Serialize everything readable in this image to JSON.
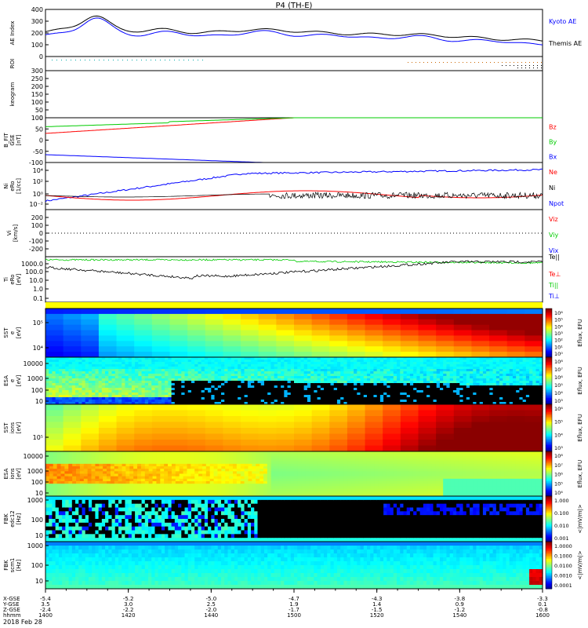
{
  "title": "P4 (TH-E)",
  "date_label": "2018 Feb 28",
  "chart_data": [
    {
      "panel": "ae",
      "type": "line",
      "ylabel": "AE Index",
      "ylim": [
        0,
        400
      ],
      "yticks": [
        "0",
        "100",
        "200",
        "300",
        "400"
      ],
      "series": [
        {
          "name": "Kyoto AE",
          "color": "#0000ff"
        },
        {
          "name": "Themis AE",
          "color": "#000000"
        }
      ]
    },
    {
      "panel": "roi",
      "type": "scatter",
      "ylabel": "ROI"
    },
    {
      "panel": "keogram",
      "type": "line",
      "ylabel": "keogram",
      "ylim": [
        0,
        300
      ],
      "yticks": [
        "0",
        "50",
        "100",
        "150",
        "200",
        "250",
        "300"
      ]
    },
    {
      "panel": "bfield",
      "type": "line",
      "ylabel_lines": [
        "B_FIT",
        "GSE",
        "[nT]"
      ],
      "ylim": [
        -100,
        100
      ],
      "yticks": [
        "-100",
        "-50",
        "0",
        "50",
        "100"
      ],
      "series": [
        {
          "name": "Bz",
          "color": "#ff0000"
        },
        {
          "name": "By",
          "color": "#00cc00"
        },
        {
          "name": "Bx",
          "color": "#0000ff"
        }
      ]
    },
    {
      "panel": "density",
      "type": "line",
      "ylabel_lines": [
        "Ni",
        "eRo",
        "[1/cc]"
      ],
      "yticks": [
        "10⁻²",
        "10⁰",
        "10²",
        "10⁴"
      ],
      "series": [
        {
          "name": "Ne",
          "color": "#ff0000"
        },
        {
          "name": "Ni",
          "color": "#000000"
        },
        {
          "name": "Npot",
          "color": "#0000ff"
        }
      ]
    },
    {
      "panel": "velocity",
      "type": "line",
      "ylabel_lines": [
        "Vi",
        "[km/s]"
      ],
      "ylim": [
        -300,
        300
      ],
      "yticks": [
        "-200",
        "-100",
        "0",
        "100",
        "200"
      ],
      "series": [
        {
          "name": "Viz",
          "color": "#ff0000"
        },
        {
          "name": "Viy",
          "color": "#00cc00"
        },
        {
          "name": "Vix",
          "color": "#0000ff"
        }
      ]
    },
    {
      "panel": "temperature",
      "type": "line",
      "ylabel_lines": [
        "Ti",
        "eRo",
        "[eV]"
      ],
      "yticks": [
        "0.1",
        "1.0",
        "10.0",
        "100.0",
        "1000.0"
      ],
      "series": [
        {
          "name": "Te||",
          "color": "#000000"
        },
        {
          "name": "Te⊥",
          "color": "#ff0000"
        },
        {
          "name": "Ti||",
          "color": "#00cc00"
        },
        {
          "name": "Ti⊥",
          "color": "#0000ff"
        }
      ]
    },
    {
      "panel": "sst_e",
      "type": "heatmap",
      "ylabel_lines": [
        "SST",
        "e",
        "[eV]"
      ],
      "yticks": [
        "10⁴",
        "10⁵"
      ],
      "colorbar_label": "Eflux, EFU",
      "colorbar_ticks": [
        "10⁶",
        "10⁵",
        "10⁴",
        "10³",
        "10²",
        "10¹",
        "10⁰"
      ]
    },
    {
      "panel": "esa_e",
      "type": "heatmap",
      "ylabel_lines": [
        "ESA",
        "e",
        "[eV]"
      ],
      "yticks": [
        "10",
        "100",
        "1000",
        "10000"
      ],
      "colorbar_label": "Eflux, EFU",
      "colorbar_ticks": [
        "10⁸",
        "10⁷",
        "10⁶",
        "10⁵",
        "10⁴",
        "10³"
      ]
    },
    {
      "panel": "sst_i",
      "type": "heatmap",
      "ylabel_lines": [
        "SST",
        "ions",
        "[eV]"
      ],
      "yticks": [
        "10⁵"
      ],
      "colorbar_label": "Eflux, EFU",
      "colorbar_ticks": [
        "10⁶",
        "10⁵",
        "10⁴",
        "10³"
      ]
    },
    {
      "panel": "esa_i",
      "type": "heatmap",
      "ylabel_lines": [
        "ESA",
        "ions",
        "[eV]"
      ],
      "yticks": [
        "10",
        "100",
        "1000",
        "10000"
      ],
      "colorbar_label": "Eflux, EFU",
      "colorbar_ticks": [
        "10⁸",
        "10⁷",
        "10⁶",
        "10⁵",
        "10⁴"
      ]
    },
    {
      "panel": "fbk_e",
      "type": "heatmap",
      "ylabel_lines": [
        "FBK",
        "edc12",
        "[Hz]"
      ],
      "yticks": [
        "10",
        "100",
        "1000"
      ],
      "colorbar_label": "<|mV/m|>",
      "colorbar_ticks": [
        "1.000",
        "0.100",
        "0.010",
        "0.001"
      ]
    },
    {
      "panel": "fbk_b",
      "type": "heatmap",
      "ylabel_lines": [
        "FBK",
        "scm1",
        "[Hz]"
      ],
      "yticks": [
        "10",
        "100",
        "1000"
      ],
      "colorbar_label": "<|mV/m|>",
      "colorbar_ticks": [
        "1.0000",
        "0.1000",
        "0.0100",
        "0.0010",
        "0.0001"
      ]
    }
  ],
  "x_axis": {
    "row_labels": [
      "X-GSE",
      "Y-GSE",
      "Z-GSE",
      "hhmm"
    ],
    "ticks": [
      {
        "x": "-5.4",
        "y": "3.5",
        "z": "-2.4",
        "t": "1400"
      },
      {
        "x": "-5.2",
        "y": "3.0",
        "z": "-2.2",
        "t": "1420"
      },
      {
        "x": "-5.0",
        "y": "2.5",
        "z": "-2.0",
        "t": "1440"
      },
      {
        "x": "-4.7",
        "y": "1.9",
        "z": "-1.7",
        "t": "1500"
      },
      {
        "x": "-4.3",
        "y": "1.4",
        "z": "-1.5",
        "t": "1520"
      },
      {
        "x": "-3.8",
        "y": "0.9",
        "z": "-1.2",
        "t": "1540"
      },
      {
        "x": "-3.3",
        "y": "0.1",
        "z": "-0.8",
        "t": "1600"
      }
    ]
  }
}
